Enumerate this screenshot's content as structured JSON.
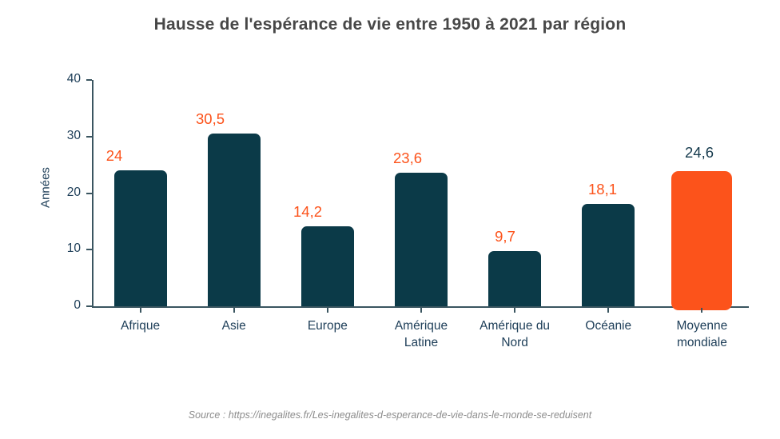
{
  "title": "Hausse de l'espérance de vie entre 1950 à 2021 par région",
  "source": "Source : https://inegalites.fr/Les-inegalites-d-esperance-de-vie-dans-le-monde-se-reduisent",
  "chart_data": {
    "type": "bar",
    "title": "Hausse de l'espérance de vie entre 1950 à 2021 par région",
    "categories": [
      "Afrique",
      "Asie",
      "Europe",
      "Amérique Latine",
      "Amérique du Nord",
      "Océanie",
      "Moyenne mondiale"
    ],
    "values": [
      24,
      30.5,
      14.2,
      23.6,
      9.7,
      18.1,
      24.6
    ],
    "value_labels": [
      "24",
      "30,5",
      "14,2",
      "23,6",
      "9,7",
      "18,1",
      "24,6"
    ],
    "xlabel": "",
    "ylabel": "Années",
    "ylim": [
      0,
      40
    ],
    "yticks": [
      0,
      10,
      20,
      30,
      40
    ],
    "grid": false,
    "legend": null,
    "bar_color": "#0b3a48",
    "highlight_color": "#fc531b",
    "highlight_index": 6,
    "value_label_color": "#fc531b",
    "highlight_value_label_color": "#14394c",
    "axis_color": "#3a5560",
    "tick_label_color": "#20405a"
  }
}
